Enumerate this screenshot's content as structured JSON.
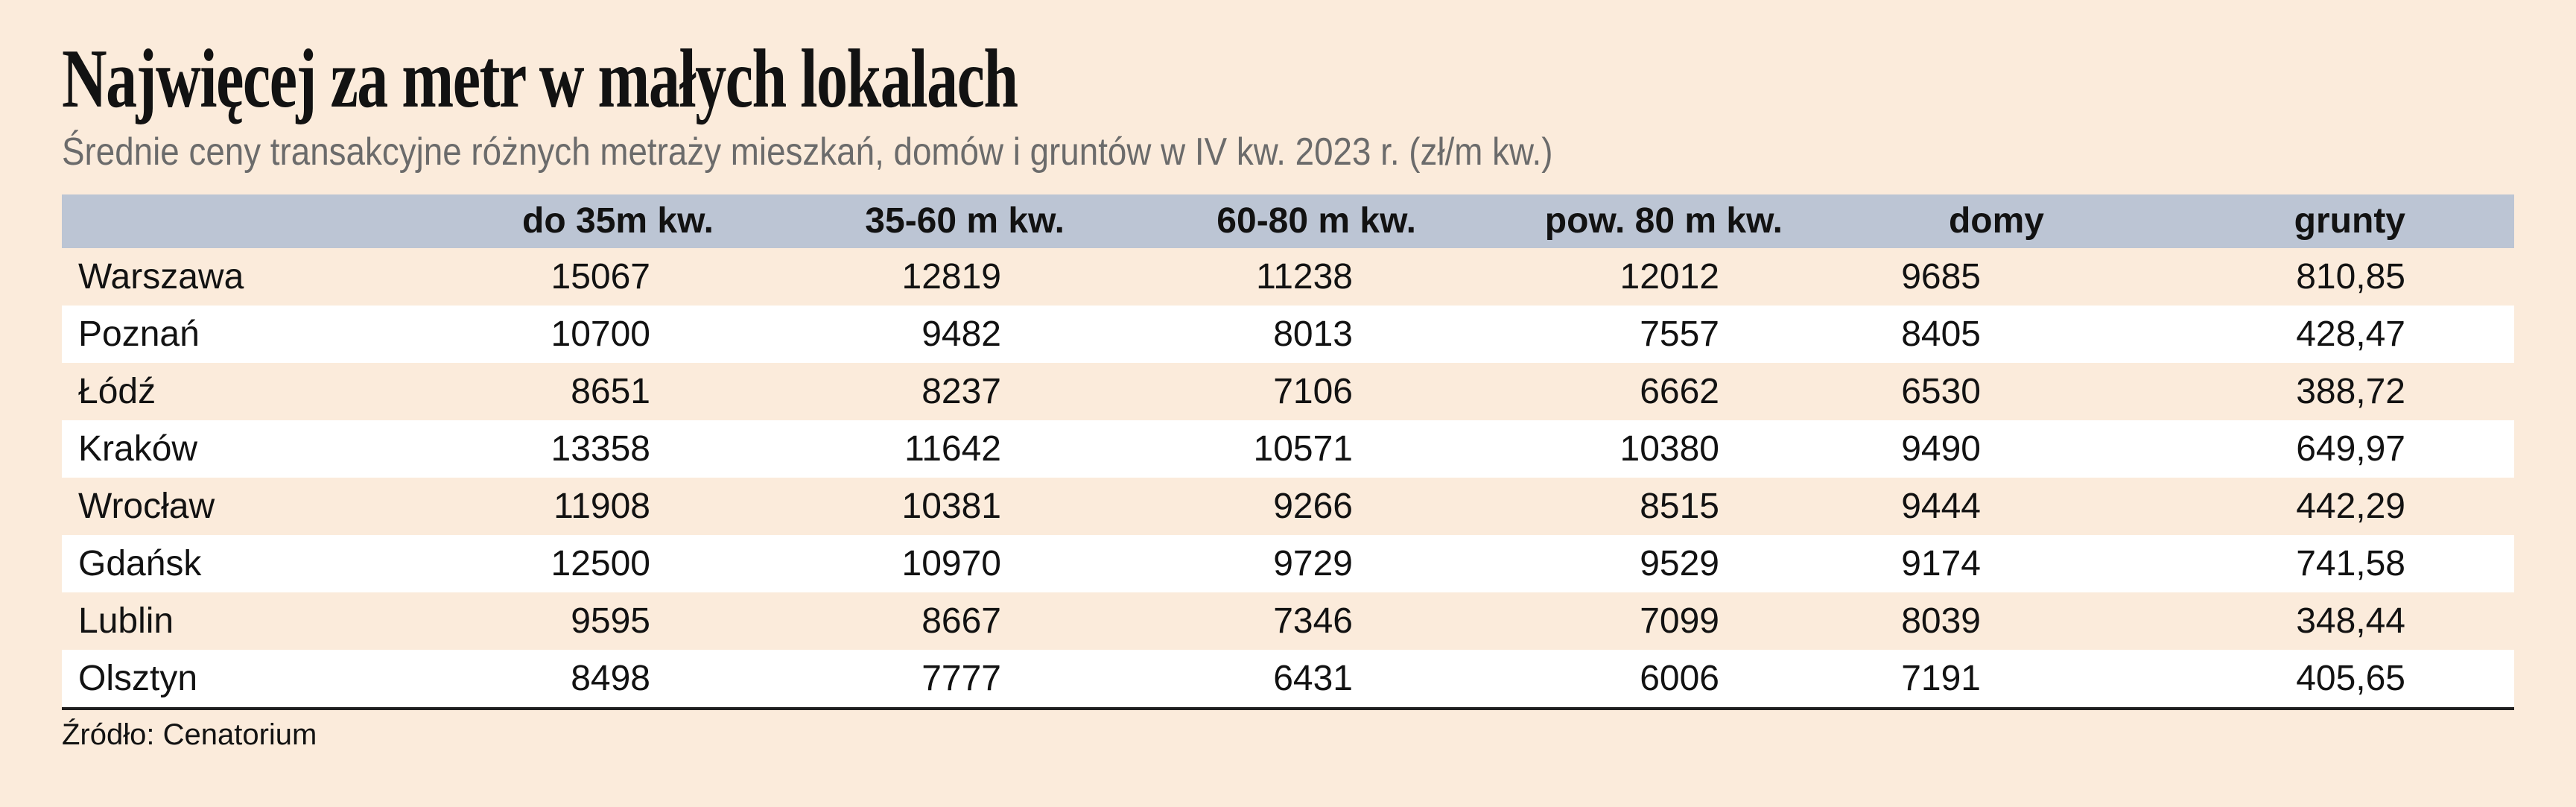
{
  "page": {
    "title": "Najwięcej za metr w małych lokalach",
    "subtitle": "Średnie ceny transakcyjne różnych metraży mieszkań, domów i gruntów w IV kw. 2023 r. (zł/m kw.)",
    "source": "Źródło: Cenatorium"
  },
  "colors": {
    "background": "#fbebdb",
    "header_row": "#bcc5d4",
    "row_alt": "#ffffff",
    "text": "#121212",
    "subtitle_text": "#6b6b6b",
    "rule": "#1f1f1f"
  },
  "chart_data": {
    "type": "table",
    "title": "Najwięcej za metr w małych lokalach",
    "subtitle": "Średnie ceny transakcyjne różnych metraży mieszkań, domów i gruntów w IV kw. 2023 r. (zł/m kw.)",
    "source": "Źródło: Cenatorium",
    "unit": "zł/m kw.",
    "columns": [
      "",
      "do 35m kw.",
      "35-60 m kw.",
      "60-80 m kw.",
      "pow. 80 m kw.",
      "domy",
      "grunty"
    ],
    "rows": [
      {
        "city": "Warszawa",
        "values": [
          "15067",
          "12819",
          "11238",
          "12012",
          "9685",
          "810,85"
        ]
      },
      {
        "city": "Poznań",
        "values": [
          "10700",
          "9482",
          "8013",
          "7557",
          "8405",
          "428,47"
        ]
      },
      {
        "city": "Łódź",
        "values": [
          "8651",
          "8237",
          "7106",
          "6662",
          "6530",
          "388,72"
        ]
      },
      {
        "city": "Kraków",
        "values": [
          "13358",
          "11642",
          "10571",
          "10380",
          "9490",
          "649,97"
        ]
      },
      {
        "city": "Wrocław",
        "values": [
          "11908",
          "10381",
          "9266",
          "8515",
          "9444",
          "442,29"
        ]
      },
      {
        "city": "Gdańsk",
        "values": [
          "12500",
          "10970",
          "9729",
          "9529",
          "9174",
          "741,58"
        ]
      },
      {
        "city": "Lublin",
        "values": [
          "9595",
          "8667",
          "7346",
          "7099",
          "8039",
          "348,44"
        ]
      },
      {
        "city": "Olsztyn",
        "values": [
          "8498",
          "7777",
          "6431",
          "6006",
          "7191",
          "405,65"
        ]
      }
    ]
  }
}
